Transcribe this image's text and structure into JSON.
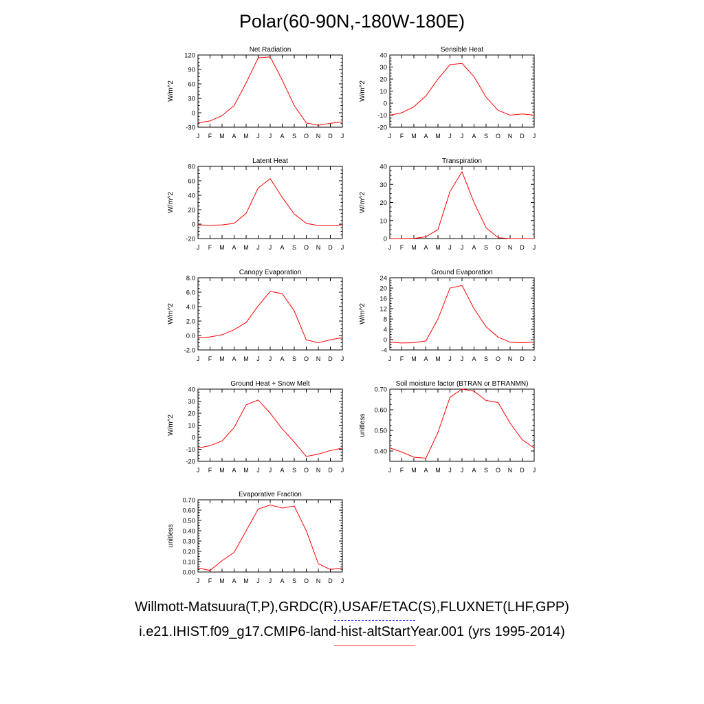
{
  "title": "Polar(60-90N,-180W-180E)",
  "legend": {
    "observations": "Willmott-Matsuura(T,P),GRDC(R),USAF/ETAC(S),FLUXNET(LHF,GPP)",
    "model": "i.e21.IHIST.f09_g17.CMIP6-land-hist-altStartYear.001 (yrs 1995-2014)"
  },
  "colors": {
    "model_line": "#ff0000",
    "obs_line": "#4040ff"
  },
  "chart_data": [
    {
      "type": "line",
      "title": "Net Radiation",
      "ylabel": "W/m^2",
      "categories": [
        "J",
        "F",
        "M",
        "A",
        "M",
        "J",
        "J",
        "A",
        "S",
        "O",
        "N",
        "D",
        "J"
      ],
      "ylim": [
        -30,
        120
      ],
      "yticks": [
        -30,
        0,
        30,
        60,
        90,
        120
      ],
      "series": [
        {
          "values": [
            -21,
            -17,
            -6,
            15,
            62,
            114,
            116,
            68,
            15,
            -21,
            -26,
            -22,
            -19
          ]
        }
      ]
    },
    {
      "type": "line",
      "title": "Sensible Heat",
      "ylabel": "W/m^2",
      "categories": [
        "J",
        "F",
        "M",
        "A",
        "M",
        "J",
        "J",
        "A",
        "S",
        "O",
        "N",
        "D",
        "J"
      ],
      "ylim": [
        -20,
        40
      ],
      "yticks": [
        -20,
        -10,
        0,
        10,
        20,
        30,
        40
      ],
      "series": [
        {
          "values": [
            -10,
            -8,
            -3,
            6,
            20,
            32,
            33,
            22,
            5,
            -6,
            -10,
            -9,
            -10
          ]
        }
      ]
    },
    {
      "type": "line",
      "title": "Latent Heat",
      "ylabel": "W/m^2",
      "categories": [
        "J",
        "F",
        "M",
        "A",
        "M",
        "J",
        "J",
        "A",
        "S",
        "O",
        "N",
        "D",
        "J"
      ],
      "ylim": [
        -20,
        80
      ],
      "yticks": [
        -20,
        0,
        20,
        40,
        60,
        80
      ],
      "series": [
        {
          "values": [
            -1,
            -1.5,
            -1,
            1,
            15,
            50,
            63,
            37,
            14,
            1,
            -2,
            -2,
            -1
          ]
        }
      ]
    },
    {
      "type": "line",
      "title": "Transpiration",
      "ylabel": "W/m^2",
      "categories": [
        "J",
        "F",
        "M",
        "A",
        "M",
        "J",
        "J",
        "A",
        "S",
        "O",
        "N",
        "D",
        "J"
      ],
      "ylim": [
        0,
        40
      ],
      "yticks": [
        0,
        10,
        20,
        30,
        40
      ],
      "series": [
        {
          "values": [
            0,
            0,
            0.1,
            1,
            5,
            26,
            37,
            20,
            6,
            0.5,
            0,
            0,
            0
          ]
        }
      ]
    },
    {
      "type": "line",
      "title": "Canopy Evaporation",
      "ylabel": "W/m^2",
      "categories": [
        "J",
        "F",
        "M",
        "A",
        "M",
        "J",
        "J",
        "A",
        "S",
        "O",
        "N",
        "D",
        "J"
      ],
      "ylim": [
        -2.0,
        8.0
      ],
      "yticks": [
        -2.0,
        0.0,
        2.0,
        4.0,
        6.0,
        8.0
      ],
      "ytick_decimals": 1,
      "series": [
        {
          "values": [
            -0.3,
            -0.2,
            0.1,
            0.8,
            1.8,
            4.1,
            6.1,
            5.8,
            3.4,
            -0.6,
            -1.0,
            -0.6,
            -0.3
          ]
        }
      ]
    },
    {
      "type": "line",
      "title": "Ground Evaporation",
      "ylabel": "W/m^2",
      "categories": [
        "J",
        "F",
        "M",
        "A",
        "M",
        "J",
        "J",
        "A",
        "S",
        "O",
        "N",
        "D",
        "J"
      ],
      "ylim": [
        -4,
        24
      ],
      "yticks": [
        -4,
        0,
        4,
        8,
        12,
        16,
        20,
        24
      ],
      "series": [
        {
          "values": [
            -1,
            -1.3,
            -1.2,
            -0.5,
            8,
            20,
            21,
            12,
            5,
            1,
            -1,
            -1.2,
            -1
          ]
        }
      ]
    },
    {
      "type": "line",
      "title": "Ground Heat + Snow Melt",
      "ylabel": "W/m^2",
      "categories": [
        "J",
        "F",
        "M",
        "A",
        "M",
        "J",
        "J",
        "A",
        "S",
        "O",
        "N",
        "D",
        "J"
      ],
      "ylim": [
        -20,
        40
      ],
      "yticks": [
        -20,
        -10,
        0,
        10,
        20,
        30,
        40
      ],
      "series": [
        {
          "values": [
            -9,
            -7,
            -3,
            8,
            27,
            31,
            20,
            7,
            -4,
            -16,
            -14,
            -11,
            -9
          ]
        }
      ]
    },
    {
      "type": "line",
      "title": "Soil moisture factor (BTRAN or BTRANMN)",
      "ylabel": "unitless",
      "categories": [
        "J",
        "F",
        "M",
        "A",
        "M",
        "J",
        "J",
        "A",
        "S",
        "O",
        "N",
        "D",
        "J"
      ],
      "ylim": [
        0.35,
        0.7
      ],
      "yticks": [
        0.4,
        0.5,
        0.6,
        0.7
      ],
      "ytick_decimals": 2,
      "series": [
        {
          "values": [
            0.415,
            0.395,
            0.37,
            0.365,
            0.49,
            0.66,
            0.7,
            0.69,
            0.645,
            0.635,
            0.535,
            0.455,
            0.415
          ]
        }
      ]
    },
    {
      "type": "line",
      "title": "Evaporative Fraction",
      "ylabel": "unitless",
      "categories": [
        "J",
        "F",
        "M",
        "A",
        "M",
        "J",
        "J",
        "A",
        "S",
        "O",
        "N",
        "D",
        "J"
      ],
      "ylim": [
        0.0,
        0.7
      ],
      "yticks": [
        0.0,
        0.1,
        0.2,
        0.3,
        0.4,
        0.5,
        0.6,
        0.7
      ],
      "ytick_decimals": 2,
      "series": [
        {
          "values": [
            0.04,
            0.015,
            0.11,
            0.19,
            0.4,
            0.61,
            0.65,
            0.62,
            0.64,
            0.4,
            0.08,
            0.025,
            0.04
          ]
        }
      ]
    }
  ]
}
